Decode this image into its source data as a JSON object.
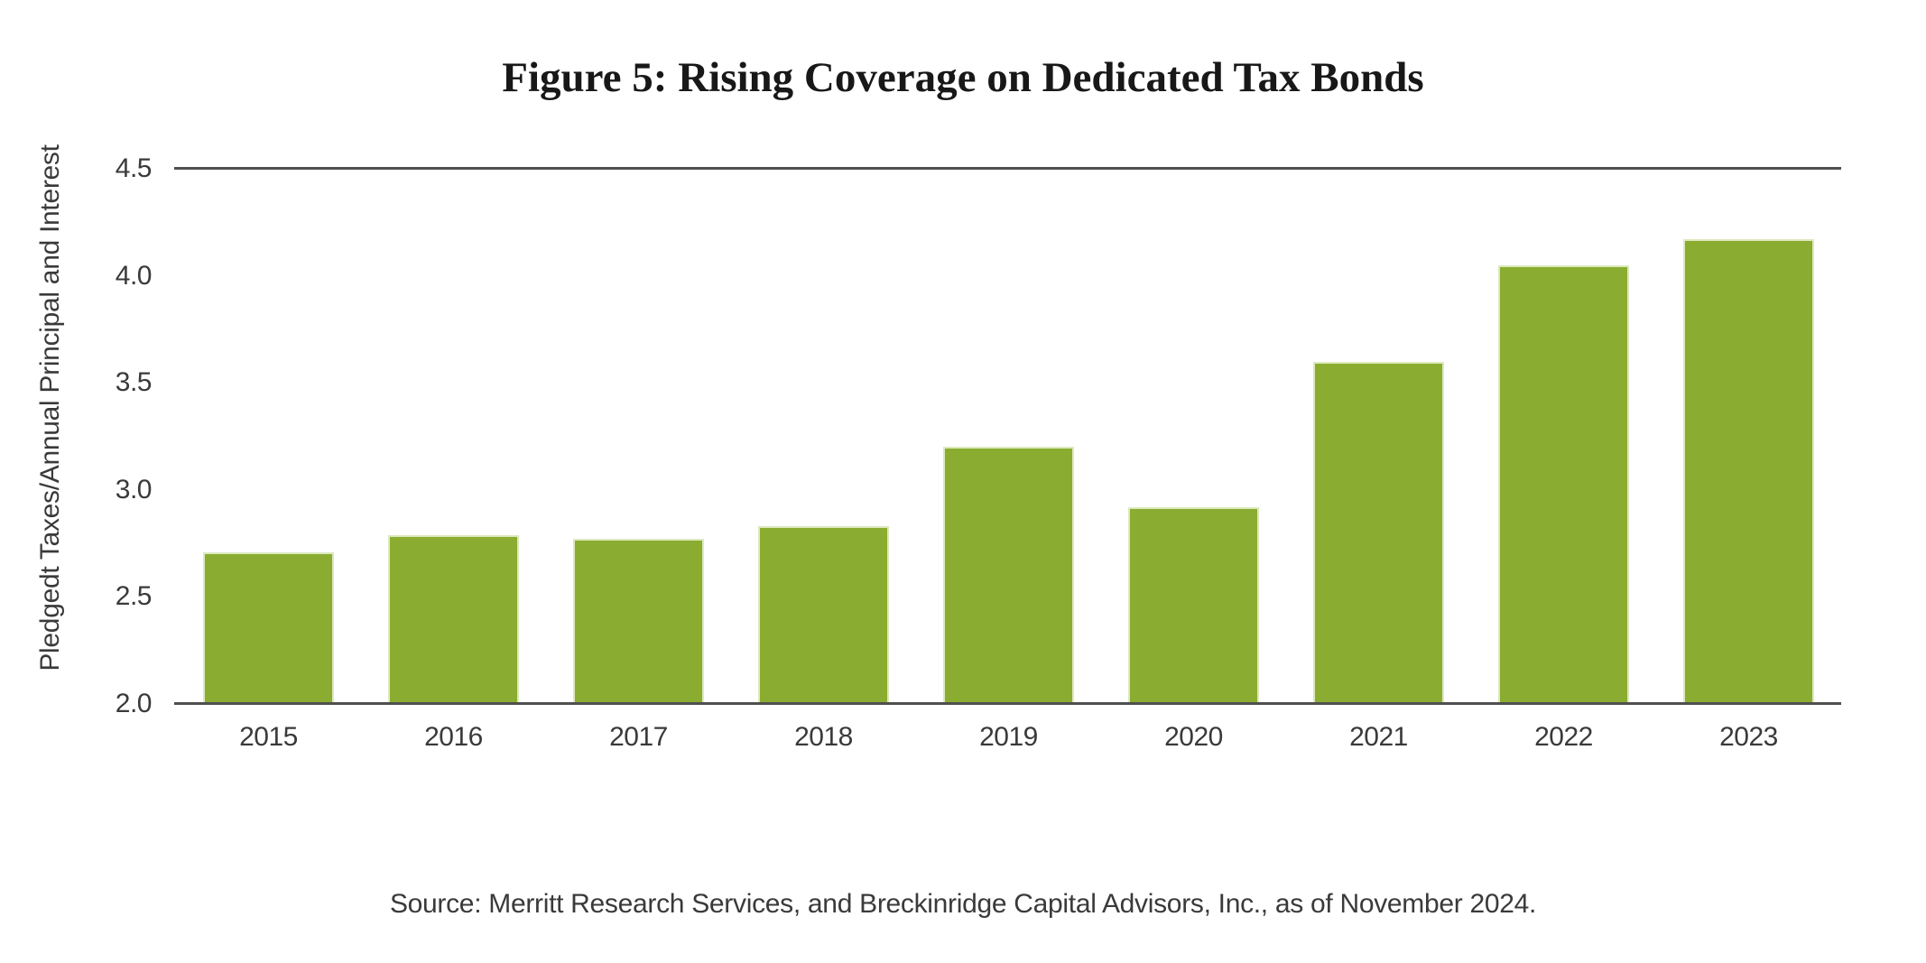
{
  "title": "Figure 5: Rising Coverage on Dedicated Tax Bonds",
  "source_note": "Source: Merritt Research Services, and Breckinridge Capital Advisors, Inc., as of November 2024.",
  "chart_data": {
    "type": "bar",
    "title": "Figure 5: Rising Coverage on Dedicated Tax Bonds",
    "categories": [
      "2015",
      "2016",
      "2017",
      "2018",
      "2019",
      "2020",
      "2021",
      "2022",
      "2023"
    ],
    "values": [
      2.71,
      2.79,
      2.77,
      2.83,
      3.2,
      2.92,
      3.6,
      4.05,
      4.17
    ],
    "xlabel": "",
    "ylabel": "Pledgedt Taxes/Annual Principal and Interest",
    "ylim": [
      2.0,
      4.5
    ],
    "yticks": [
      2.0,
      2.5,
      3.0,
      3.5,
      4.0,
      4.5
    ],
    "ytick_labels": [
      "2.0",
      "2.5",
      "3.0",
      "3.5",
      "4.0",
      "4.5"
    ],
    "grid": "horizontal line at top (4.5) and baseline (2.0) only",
    "legend": "none",
    "bar_color": "#8aac30"
  },
  "colors": {
    "bar_fill": "#8aac30",
    "bar_edge_highlight": "#dce9bd",
    "axis_line": "#4f4f4f",
    "axis_text": "#3a3a3a",
    "title_text": "#181818",
    "background": "#ffffff"
  }
}
